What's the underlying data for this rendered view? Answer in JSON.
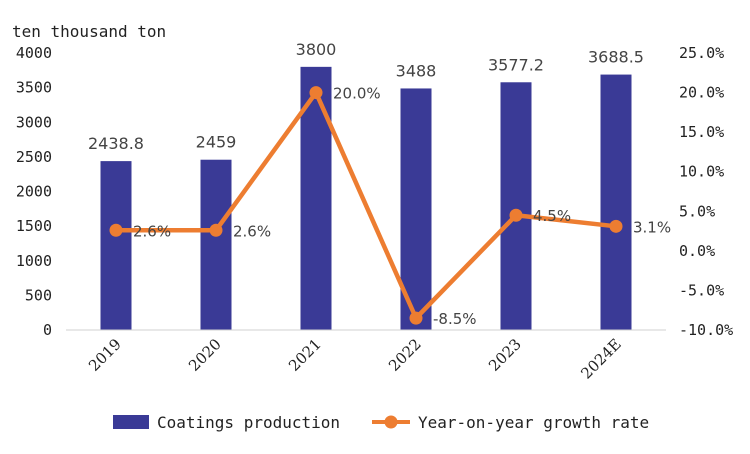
{
  "chart_data": {
    "type": "bar",
    "unit_label": "ten thousand ton",
    "categories": [
      "2019",
      "2020",
      "2021",
      "2022",
      "2023",
      "2024E"
    ],
    "series": [
      {
        "name": "Coatings production",
        "type": "bar",
        "axis": "left",
        "values": [
          2438.8,
          2459,
          3800,
          3488,
          3577.2,
          3688.5
        ],
        "labels": [
          "2438.8",
          "2459",
          "3800",
          "3488",
          "3577.2",
          "3688.5"
        ],
        "color": "#3a3a96"
      },
      {
        "name": "Year-on-year growth rate",
        "type": "line",
        "axis": "right",
        "values": [
          2.6,
          2.6,
          20.0,
          -8.5,
          4.5,
          3.1
        ],
        "labels": [
          "2.6%",
          "2.6%",
          "20.0%",
          "-8.5%",
          "4.5%",
          "3.1%"
        ],
        "color": "#ed7d31"
      }
    ],
    "y_left": {
      "ylim": [
        0,
        4000
      ],
      "ticks": [
        0,
        500,
        1000,
        1500,
        2000,
        2500,
        3000,
        3500,
        4000
      ],
      "tick_labels": [
        "0",
        "500",
        "1000",
        "1500",
        "2000",
        "2500",
        "3000",
        "3500",
        "4000"
      ]
    },
    "y_right": {
      "ylim": [
        -10,
        25
      ],
      "ticks": [
        -10,
        -5,
        0,
        5,
        10,
        15,
        20,
        25
      ],
      "tick_labels": [
        "-10.0%",
        "-5.0%",
        "0.0%",
        "5.0%",
        "10.0%",
        "15.0%",
        "20.0%",
        "25.0%"
      ]
    },
    "grid": false,
    "legend_position": "bottom"
  }
}
